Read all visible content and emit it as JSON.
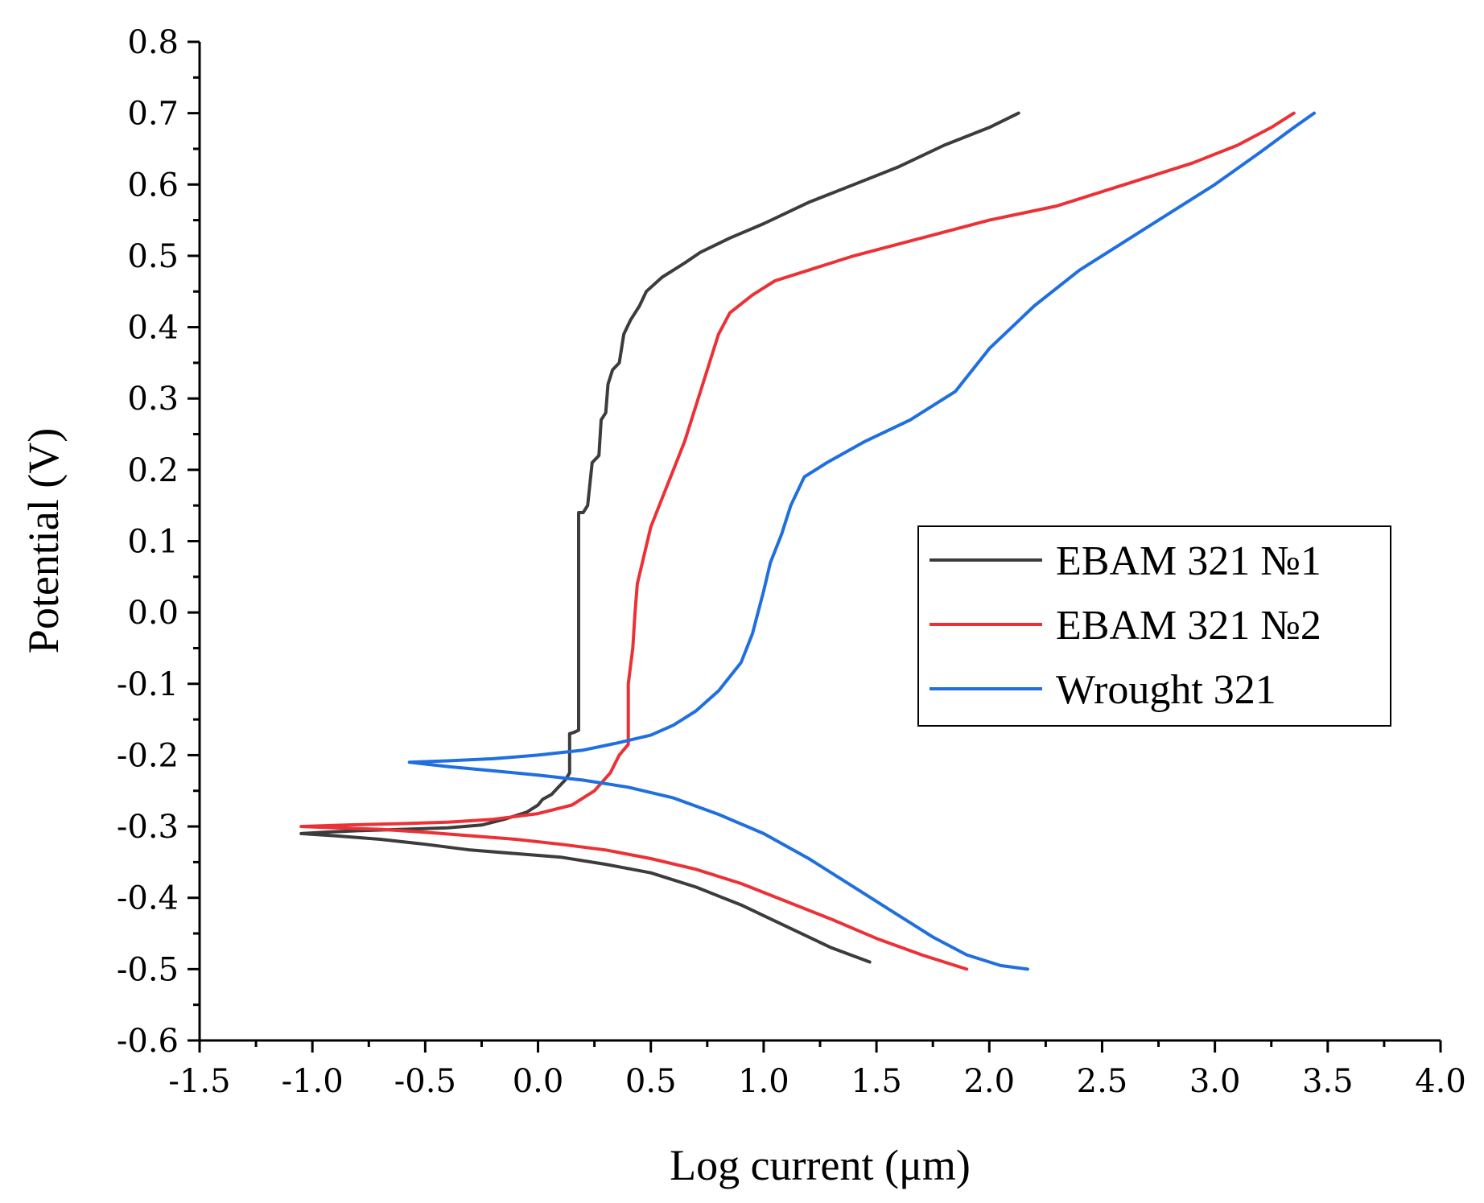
{
  "chart_data": {
    "type": "line",
    "title": "",
    "xlabel": "Log current (μm)",
    "ylabel": "Potential (V)",
    "xlim": [
      -1.5,
      4.0
    ],
    "ylim": [
      -0.6,
      0.8
    ],
    "xticks": [
      "-1.5",
      "-1.0",
      "-0.5",
      "0.0",
      "0.5",
      "1.0",
      "1.5",
      "2.0",
      "2.5",
      "3.0",
      "3.5",
      "4.0"
    ],
    "yticks": [
      "0.8",
      "0.7",
      "0.6",
      "0.5",
      "0.4",
      "0.3",
      "0.2",
      "0.1",
      "0.0",
      "-0.1",
      "-0.2",
      "-0.3",
      "-0.4",
      "-0.5",
      "-0.6"
    ],
    "xtick_values": [
      -1.5,
      -1.0,
      -0.5,
      0.0,
      0.5,
      1.0,
      1.5,
      2.0,
      2.5,
      3.0,
      3.5,
      4.0
    ],
    "ytick_values": [
      0.8,
      0.7,
      0.6,
      0.5,
      0.4,
      0.3,
      0.2,
      0.1,
      0.0,
      -0.1,
      -0.2,
      -0.3,
      -0.4,
      -0.5,
      -0.6
    ],
    "grid": false,
    "legend_position": "center-right",
    "series": [
      {
        "name": "EBAM 321 №1",
        "color": "#3c3c3c",
        "points": [
          [
            1.47,
            -0.49
          ],
          [
            1.3,
            -0.47
          ],
          [
            1.1,
            -0.44
          ],
          [
            0.9,
            -0.41
          ],
          [
            0.7,
            -0.385
          ],
          [
            0.5,
            -0.365
          ],
          [
            0.3,
            -0.353
          ],
          [
            0.1,
            -0.343
          ],
          [
            -0.1,
            -0.338
          ],
          [
            -0.3,
            -0.333
          ],
          [
            -0.5,
            -0.325
          ],
          [
            -0.7,
            -0.318
          ],
          [
            -0.9,
            -0.313
          ],
          [
            -1.05,
            -0.31
          ],
          [
            -0.95,
            -0.308
          ],
          [
            -0.8,
            -0.306
          ],
          [
            -0.6,
            -0.304
          ],
          [
            -0.4,
            -0.302
          ],
          [
            -0.25,
            -0.298
          ],
          [
            -0.15,
            -0.29
          ],
          [
            -0.05,
            -0.28
          ],
          [
            0.0,
            -0.27
          ],
          [
            0.02,
            -0.262
          ],
          [
            0.06,
            -0.255
          ],
          [
            0.09,
            -0.245
          ],
          [
            0.12,
            -0.235
          ],
          [
            0.14,
            -0.225
          ],
          [
            0.14,
            -0.2
          ],
          [
            0.14,
            -0.17
          ],
          [
            0.16,
            -0.168
          ],
          [
            0.18,
            -0.165
          ],
          [
            0.18,
            -0.1
          ],
          [
            0.18,
            0.0
          ],
          [
            0.18,
            0.14
          ],
          [
            0.2,
            0.14
          ],
          [
            0.22,
            0.15
          ],
          [
            0.24,
            0.21
          ],
          [
            0.27,
            0.22
          ],
          [
            0.28,
            0.27
          ],
          [
            0.3,
            0.28
          ],
          [
            0.31,
            0.32
          ],
          [
            0.33,
            0.34
          ],
          [
            0.36,
            0.35
          ],
          [
            0.37,
            0.37
          ],
          [
            0.38,
            0.39
          ],
          [
            0.41,
            0.41
          ],
          [
            0.45,
            0.43
          ],
          [
            0.48,
            0.45
          ],
          [
            0.55,
            0.47
          ],
          [
            0.65,
            0.49
          ],
          [
            0.72,
            0.505
          ],
          [
            0.85,
            0.525
          ],
          [
            1.0,
            0.545
          ],
          [
            1.2,
            0.575
          ],
          [
            1.4,
            0.6
          ],
          [
            1.6,
            0.625
          ],
          [
            1.8,
            0.655
          ],
          [
            2.0,
            0.68
          ],
          [
            2.13,
            0.7
          ]
        ]
      },
      {
        "name": "EBAM 321 №2",
        "color": "#ec3136",
        "points": [
          [
            1.9,
            -0.5
          ],
          [
            1.7,
            -0.48
          ],
          [
            1.5,
            -0.457
          ],
          [
            1.3,
            -0.43
          ],
          [
            1.1,
            -0.405
          ],
          [
            0.9,
            -0.38
          ],
          [
            0.7,
            -0.36
          ],
          [
            0.5,
            -0.345
          ],
          [
            0.3,
            -0.333
          ],
          [
            0.1,
            -0.325
          ],
          [
            -0.1,
            -0.318
          ],
          [
            -0.3,
            -0.313
          ],
          [
            -0.5,
            -0.308
          ],
          [
            -0.7,
            -0.304
          ],
          [
            -0.9,
            -0.302
          ],
          [
            -1.05,
            -0.3
          ],
          [
            -0.85,
            -0.298
          ],
          [
            -0.6,
            -0.296
          ],
          [
            -0.4,
            -0.294
          ],
          [
            -0.2,
            -0.29
          ],
          [
            0.0,
            -0.282
          ],
          [
            0.15,
            -0.27
          ],
          [
            0.25,
            -0.25
          ],
          [
            0.32,
            -0.225
          ],
          [
            0.36,
            -0.2
          ],
          [
            0.4,
            -0.185
          ],
          [
            0.4,
            -0.1
          ],
          [
            0.42,
            -0.05
          ],
          [
            0.43,
            0.0
          ],
          [
            0.44,
            0.04
          ],
          [
            0.47,
            0.08
          ],
          [
            0.5,
            0.12
          ],
          [
            0.55,
            0.16
          ],
          [
            0.6,
            0.2
          ],
          [
            0.65,
            0.24
          ],
          [
            0.7,
            0.29
          ],
          [
            0.75,
            0.34
          ],
          [
            0.8,
            0.39
          ],
          [
            0.85,
            0.42
          ],
          [
            0.95,
            0.445
          ],
          [
            1.05,
            0.465
          ],
          [
            1.2,
            0.48
          ],
          [
            1.4,
            0.5
          ],
          [
            1.7,
            0.525
          ],
          [
            2.0,
            0.55
          ],
          [
            2.3,
            0.57
          ],
          [
            2.6,
            0.6
          ],
          [
            2.9,
            0.63
          ],
          [
            3.1,
            0.655
          ],
          [
            3.25,
            0.68
          ],
          [
            3.35,
            0.7
          ]
        ]
      },
      {
        "name": "Wrought 321",
        "color": "#1f6fe0",
        "points": [
          [
            2.17,
            -0.5
          ],
          [
            2.05,
            -0.495
          ],
          [
            1.9,
            -0.48
          ],
          [
            1.75,
            -0.455
          ],
          [
            1.6,
            -0.425
          ],
          [
            1.4,
            -0.385
          ],
          [
            1.2,
            -0.345
          ],
          [
            1.0,
            -0.31
          ],
          [
            0.8,
            -0.283
          ],
          [
            0.6,
            -0.26
          ],
          [
            0.4,
            -0.245
          ],
          [
            0.2,
            -0.235
          ],
          [
            0.0,
            -0.228
          ],
          [
            -0.2,
            -0.222
          ],
          [
            -0.4,
            -0.216
          ],
          [
            -0.57,
            -0.21
          ],
          [
            -0.4,
            -0.208
          ],
          [
            -0.2,
            -0.205
          ],
          [
            0.0,
            -0.2
          ],
          [
            0.2,
            -0.193
          ],
          [
            0.35,
            -0.183
          ],
          [
            0.5,
            -0.172
          ],
          [
            0.6,
            -0.158
          ],
          [
            0.7,
            -0.138
          ],
          [
            0.8,
            -0.11
          ],
          [
            0.9,
            -0.07
          ],
          [
            0.95,
            -0.03
          ],
          [
            1.0,
            0.03
          ],
          [
            1.03,
            0.07
          ],
          [
            1.08,
            0.11
          ],
          [
            1.12,
            0.15
          ],
          [
            1.18,
            0.19
          ],
          [
            1.28,
            0.21
          ],
          [
            1.45,
            0.24
          ],
          [
            1.65,
            0.27
          ],
          [
            1.85,
            0.31
          ],
          [
            2.0,
            0.37
          ],
          [
            2.2,
            0.43
          ],
          [
            2.4,
            0.48
          ],
          [
            2.6,
            0.52
          ],
          [
            2.8,
            0.56
          ],
          [
            3.0,
            0.6
          ],
          [
            3.2,
            0.645
          ],
          [
            3.35,
            0.68
          ],
          [
            3.44,
            0.7
          ]
        ]
      }
    ]
  }
}
